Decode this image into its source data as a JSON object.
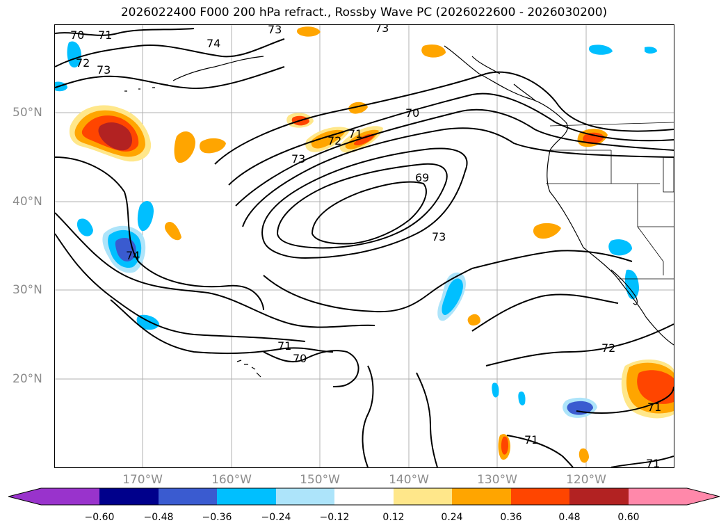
{
  "title": "2026022400 F000 200 hPa refract., Rossby Wave PC (2026022600 - 2026030200)",
  "lat_labels": [
    "50°N",
    "40°N",
    "30°N",
    "20°N"
  ],
  "lon_labels": [
    "170°W",
    "160°W",
    "150°W",
    "140°W",
    "130°W",
    "120°W"
  ],
  "contour_labels": [
    "70",
    "71",
    "72",
    "73",
    "74",
    "73",
    "73",
    "69",
    "70",
    "72",
    "71",
    "73",
    "74",
    "73",
    "71",
    "70",
    "72",
    "71",
    "71",
    "71"
  ],
  "colorbar": {
    "ticks": [
      "−0.60",
      "−0.48",
      "−0.36",
      "−0.24",
      "−0.12",
      "0.12",
      "0.24",
      "0.36",
      "0.48",
      "0.60"
    ],
    "colors": [
      "#9933cc",
      "#00008b",
      "#3a5bd0",
      "#00bfff",
      "#ade4fa",
      "#ffffff",
      "#ffe78a",
      "#ffa500",
      "#ff4500",
      "#b22222",
      "#ff88aa"
    ]
  },
  "colors": {
    "land_outline": "#000000",
    "grid": "#b0b0b0",
    "contour": "#000000"
  }
}
